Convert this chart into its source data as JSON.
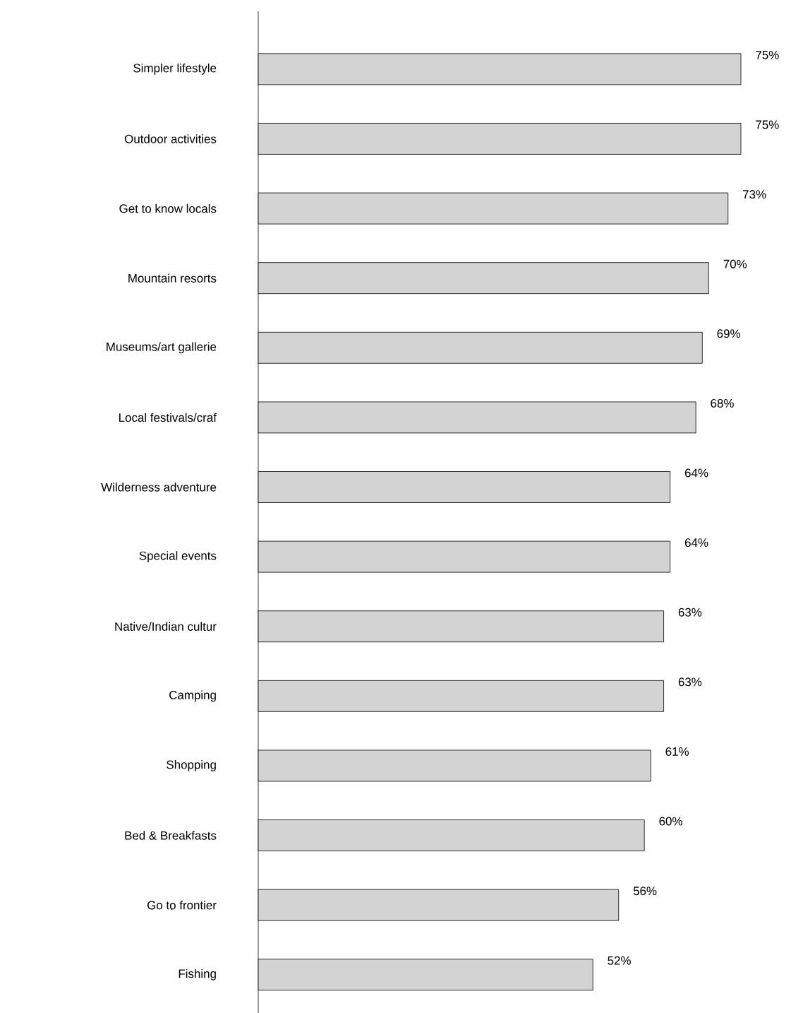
{
  "chart_data": {
    "type": "bar",
    "orientation": "horizontal",
    "color": "#d3d3d3",
    "categories": [
      "Simpler lifestyle",
      "Outdoor activities",
      "Get to know locals",
      "Mountain resorts",
      "Museums/art gallerie",
      "Local festivals/craf",
      "Wilderness adventure",
      "Special events",
      "Native/Indian cultur",
      "Camping",
      "Shopping",
      "Bed & Breakfasts",
      "Go to frontier",
      "Fishing"
    ],
    "values": [
      75,
      75,
      73,
      70,
      69,
      68,
      64,
      64,
      63,
      63,
      61,
      60,
      56,
      52
    ],
    "value_labels": [
      "75%",
      "75%",
      "73%",
      "70%",
      "69%",
      "68%",
      "64%",
      "64%",
      "63%",
      "63%",
      "61%",
      "60%",
      "56%",
      "52%"
    ]
  }
}
